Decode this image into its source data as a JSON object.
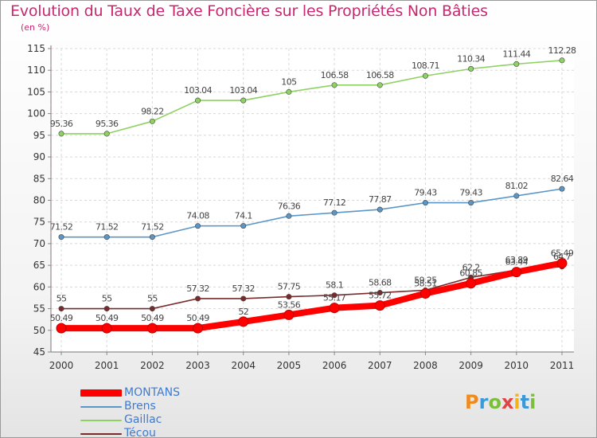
{
  "title": "Evolution du Taux de Taxe Foncière sur les Propriétés Non Bâties",
  "subtitle": "(en %)",
  "logo": {
    "text": "Proxiti",
    "letter_colors": [
      "#f08a1c",
      "#3a9ad9",
      "#7cbf3a",
      "#e04545",
      "#f2b21c",
      "#3a9ad9",
      "#7cbf3a"
    ]
  },
  "chart_data": {
    "type": "line",
    "title": "Evolution du Taux de Taxe Foncière sur les Propriétés Non Bâties",
    "ylabel": "(en %)",
    "xlabel": "",
    "x": [
      "2000",
      "2001",
      "2002",
      "2003",
      "2004",
      "2005",
      "2006",
      "2007",
      "2008",
      "2009",
      "2010",
      "2011"
    ],
    "ylim": [
      45,
      115
    ],
    "yticks": [
      45,
      50,
      55,
      60,
      65,
      70,
      75,
      80,
      85,
      90,
      95,
      100,
      105,
      110,
      115
    ],
    "grid": true,
    "legend_position": "bottom-left",
    "series": [
      {
        "name": "MONTANS",
        "color": "#ff0000",
        "thick": true,
        "values": [
          50.49,
          50.49,
          50.49,
          50.49,
          52,
          53.56,
          55.17,
          55.72,
          58.51,
          60.85,
          63.44,
          65.49
        ],
        "labels": [
          "50.49",
          "50.49",
          "50.49",
          "50.49",
          "52",
          "53.56",
          "55.17",
          "55.72",
          "58.51",
          "60.85",
          "63.44",
          "65.49"
        ]
      },
      {
        "name": "Brens",
        "color": "#5b96c8",
        "thick": false,
        "values": [
          71.52,
          71.52,
          71.52,
          74.08,
          74.1,
          76.36,
          77.12,
          77.87,
          79.43,
          79.43,
          81.02,
          82.64
        ],
        "labels": [
          "71.52",
          "71.52",
          "71.52",
          "74.08",
          "74.1",
          "76.36",
          "77.12",
          "77.87",
          "79.43",
          "79.43",
          "81.02",
          "82.64"
        ]
      },
      {
        "name": "Gaillac",
        "color": "#8fd163",
        "thick": false,
        "values": [
          95.36,
          95.36,
          98.22,
          103.04,
          103.04,
          105,
          106.58,
          106.58,
          108.71,
          110.34,
          111.44,
          112.28
        ],
        "labels": [
          "95.36",
          "95.36",
          "98.22",
          "103.04",
          "103.04",
          "105",
          "106.58",
          "106.58",
          "108.71",
          "110.34",
          "111.44",
          "112.28"
        ]
      },
      {
        "name": "Técou",
        "color": "#7a2a2a",
        "thick": false,
        "values": [
          55,
          55,
          55,
          57.32,
          57.32,
          57.75,
          58.1,
          58.68,
          59.25,
          62.2,
          63.89,
          64.7
        ],
        "labels": [
          "55",
          "55",
          "55",
          "57.32",
          "57.32",
          "57.75",
          "58.1",
          "58.68",
          "59.25",
          "62.2",
          "63.89",
          "64.7"
        ]
      }
    ]
  }
}
